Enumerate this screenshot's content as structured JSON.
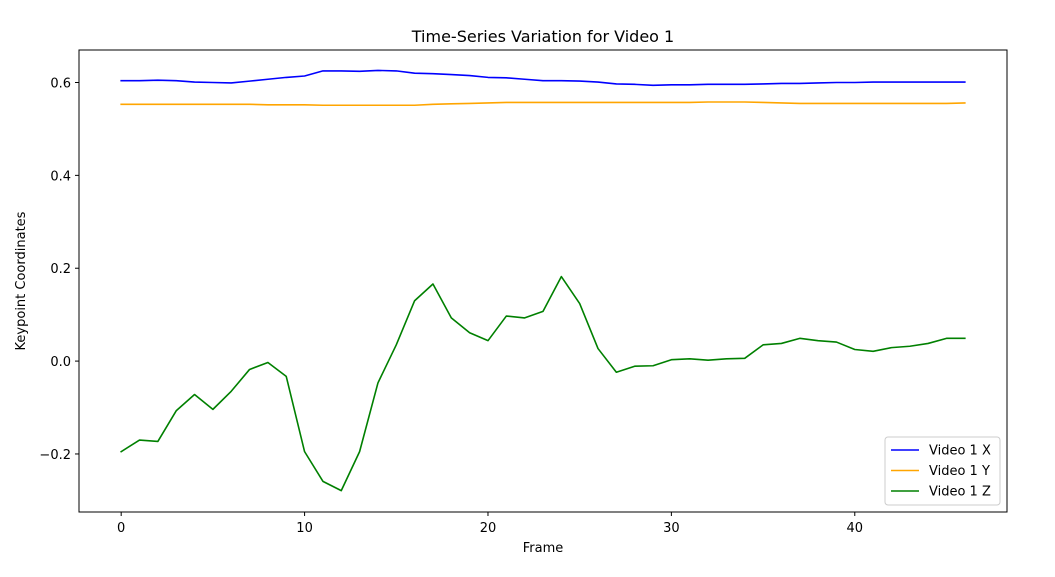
{
  "chart_data": {
    "type": "line",
    "title": "Time-Series Variation for Video 1",
    "xlabel": "Frame",
    "ylabel": "Keypoint Coordinates",
    "xlim": [
      -2.3,
      48.3
    ],
    "ylim": [
      -0.325,
      0.67
    ],
    "xticks": [
      0,
      10,
      20,
      30,
      40
    ],
    "yticks": [
      -0.2,
      0.0,
      0.2,
      0.4,
      0.6
    ],
    "ytick_labels": [
      "−0.2",
      "0.0",
      "0.2",
      "0.4",
      "0.6"
    ],
    "grid": false,
    "legend_position": "lower-right",
    "x": [
      0,
      1,
      2,
      3,
      4,
      5,
      6,
      7,
      8,
      9,
      10,
      11,
      12,
      13,
      14,
      15,
      16,
      17,
      18,
      19,
      20,
      21,
      22,
      23,
      24,
      25,
      26,
      27,
      28,
      29,
      30,
      31,
      32,
      33,
      34,
      35,
      36,
      37,
      38,
      39,
      40,
      41,
      42,
      43,
      44,
      45,
      46
    ],
    "series": [
      {
        "name": "Video 1 X",
        "color": "#0000ff",
        "values": [
          0.604,
          0.604,
          0.605,
          0.604,
          0.601,
          0.6,
          0.599,
          0.603,
          0.607,
          0.611,
          0.614,
          0.625,
          0.625,
          0.624,
          0.626,
          0.625,
          0.62,
          0.619,
          0.617,
          0.615,
          0.611,
          0.61,
          0.607,
          0.604,
          0.604,
          0.603,
          0.601,
          0.597,
          0.596,
          0.594,
          0.595,
          0.595,
          0.596,
          0.596,
          0.596,
          0.597,
          0.598,
          0.598,
          0.599,
          0.6,
          0.6,
          0.601,
          0.601,
          0.601,
          0.601,
          0.601,
          0.601
        ]
      },
      {
        "name": "Video 1 Y",
        "color": "#ffa500",
        "values": [
          0.553,
          0.553,
          0.553,
          0.553,
          0.553,
          0.553,
          0.553,
          0.553,
          0.552,
          0.552,
          0.552,
          0.551,
          0.551,
          0.551,
          0.551,
          0.551,
          0.551,
          0.553,
          0.554,
          0.555,
          0.556,
          0.557,
          0.557,
          0.557,
          0.557,
          0.557,
          0.557,
          0.557,
          0.557,
          0.557,
          0.557,
          0.557,
          0.558,
          0.558,
          0.558,
          0.557,
          0.556,
          0.555,
          0.555,
          0.555,
          0.555,
          0.555,
          0.555,
          0.555,
          0.555,
          0.555,
          0.556
        ]
      },
      {
        "name": "Video 1 Z",
        "color": "#008000",
        "values": [
          -0.195,
          -0.17,
          -0.173,
          -0.107,
          -0.072,
          -0.104,
          -0.065,
          -0.018,
          -0.003,
          -0.033,
          -0.195,
          -0.259,
          -0.279,
          -0.195,
          -0.047,
          0.035,
          0.13,
          0.166,
          0.093,
          0.061,
          0.044,
          0.097,
          0.093,
          0.107,
          0.182,
          0.124,
          0.027,
          -0.024,
          -0.011,
          -0.01,
          0.003,
          0.005,
          0.002,
          0.005,
          0.006,
          0.035,
          0.038,
          0.049,
          0.044,
          0.041,
          0.025,
          0.021,
          0.029,
          0.032,
          0.038,
          0.049,
          0.049
        ]
      }
    ]
  }
}
